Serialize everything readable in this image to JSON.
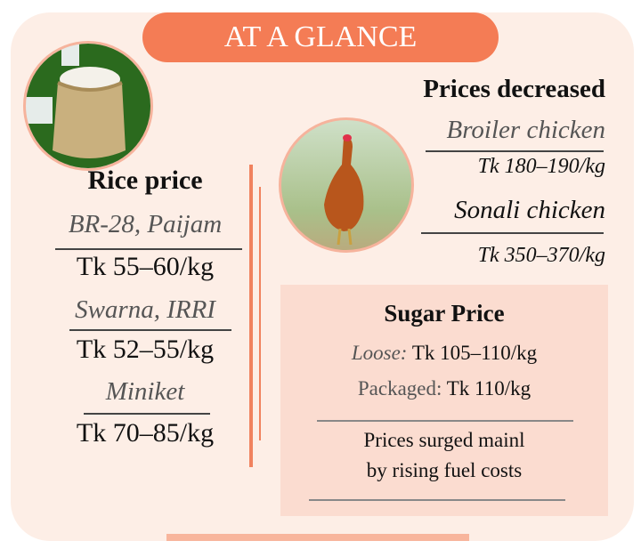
{
  "title": "AT A GLANCE",
  "colors": {
    "accent": "#f47c55",
    "card": "#fdeee6",
    "sugar_box": "#fbdcd0"
  },
  "images": {
    "rice": "rice-sack-image",
    "chicken": "chicken-image"
  },
  "rice": {
    "heading": "Rice price",
    "items": [
      {
        "variety": "BR-28, Paijam",
        "price": "Tk 55–60/kg"
      },
      {
        "variety": "Swarna, IRRI",
        "price": "Tk 52–55/kg"
      },
      {
        "variety": "Miniket",
        "price": "Tk 70–85/kg"
      }
    ]
  },
  "chicken": {
    "heading": "Prices decreased",
    "items": [
      {
        "name": "Broiler chicken",
        "price": "Tk 180–190/kg"
      },
      {
        "name": "Sonali chicken",
        "price": "Tk 350–370/kg"
      }
    ]
  },
  "sugar": {
    "heading": "Sugar Price",
    "loose_label": "Loose:",
    "loose_price": "Tk 105–110/kg",
    "packaged_label": "Packaged:",
    "packaged_price": "Tk 110/kg",
    "note_line1": "Prices surged mainl",
    "note_line2": "by rising fuel costs"
  }
}
